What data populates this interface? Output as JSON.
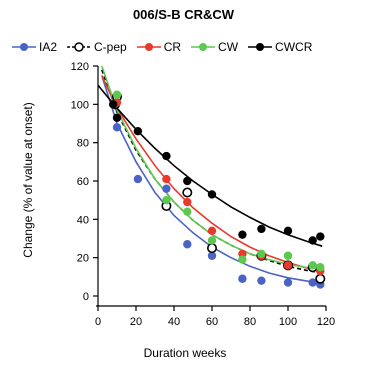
{
  "chart_data": {
    "type": "scatter",
    "title": "006/S-B CR&CW",
    "xlabel": "Duration weeks",
    "ylabel": "Change  (% of value at onset)",
    "xlim": [
      0,
      120
    ],
    "ylim": [
      0,
      120
    ],
    "x_ticks": [
      0,
      20,
      40,
      60,
      80,
      100,
      120
    ],
    "y_ticks": [
      0,
      20,
      40,
      60,
      80,
      100,
      120
    ],
    "legend_position": "top",
    "series": [
      {
        "name": "IA2",
        "color": "#4a63c4",
        "marker": "filled-circle",
        "line_style": "solid",
        "points": [
          [
            8,
            100
          ],
          [
            10,
            88
          ],
          [
            21,
            61
          ],
          [
            36,
            56
          ],
          [
            47,
            27
          ],
          [
            60,
            21
          ],
          [
            76,
            9
          ],
          [
            86,
            8
          ],
          [
            100,
            7
          ],
          [
            113,
            7
          ],
          [
            117,
            6
          ]
        ],
        "fit": [
          [
            2,
            115
          ],
          [
            10,
            90
          ],
          [
            20,
            70
          ],
          [
            30,
            54
          ],
          [
            40,
            42
          ],
          [
            50,
            33
          ],
          [
            60,
            25.5
          ],
          [
            70,
            20
          ],
          [
            80,
            15.5
          ],
          [
            90,
            12
          ],
          [
            100,
            9.5
          ],
          [
            110,
            7.8
          ],
          [
            118,
            6.5
          ]
        ]
      },
      {
        "name": "C-pep",
        "color": "#000000",
        "marker": "open-circle",
        "line_style": "dashed",
        "points": [
          [
            9,
            100
          ],
          [
            10,
            104
          ],
          [
            36,
            47
          ],
          [
            47,
            54
          ],
          [
            60,
            25
          ],
          [
            86,
            21
          ],
          [
            100,
            16
          ],
          [
            113,
            15
          ],
          [
            117,
            9
          ]
        ],
        "fit": [
          [
            2,
            118
          ],
          [
            10,
            96
          ],
          [
            20,
            76
          ],
          [
            30,
            61
          ],
          [
            40,
            49
          ],
          [
            50,
            39.5
          ],
          [
            60,
            32
          ],
          [
            70,
            26.5
          ],
          [
            80,
            22
          ],
          [
            90,
            18.5
          ],
          [
            100,
            15.5
          ],
          [
            110,
            13.3
          ],
          [
            118,
            12
          ]
        ]
      },
      {
        "name": "CR",
        "color": "#e8392b",
        "marker": "filled-circle",
        "line_style": "solid",
        "points": [
          [
            8,
            100
          ],
          [
            10,
            101
          ],
          [
            36,
            61
          ],
          [
            47,
            49
          ],
          [
            60,
            34
          ],
          [
            76,
            22
          ],
          [
            86,
            21
          ],
          [
            100,
            16
          ],
          [
            117,
            13
          ]
        ],
        "fit": [
          [
            2,
            115
          ],
          [
            10,
            98
          ],
          [
            20,
            82
          ],
          [
            30,
            68
          ],
          [
            40,
            56
          ],
          [
            50,
            46
          ],
          [
            60,
            38
          ],
          [
            70,
            31
          ],
          [
            80,
            25.5
          ],
          [
            90,
            21
          ],
          [
            100,
            17.5
          ],
          [
            110,
            14.5
          ],
          [
            118,
            12.5
          ]
        ]
      },
      {
        "name": "CW",
        "color": "#5cc84e",
        "marker": "filled-circle",
        "line_style": "solid",
        "points": [
          [
            8,
            100
          ],
          [
            10,
            105
          ],
          [
            36,
            50
          ],
          [
            47,
            44
          ],
          [
            60,
            29
          ],
          [
            76,
            19
          ],
          [
            86,
            22
          ],
          [
            100,
            21
          ],
          [
            113,
            16
          ],
          [
            117,
            15
          ]
        ],
        "fit": [
          [
            2,
            120
          ],
          [
            10,
            97
          ],
          [
            20,
            77
          ],
          [
            30,
            61
          ],
          [
            40,
            49
          ],
          [
            50,
            39.5
          ],
          [
            60,
            32
          ],
          [
            70,
            26.5
          ],
          [
            80,
            22
          ],
          [
            90,
            19
          ],
          [
            100,
            16.5
          ],
          [
            110,
            14.8
          ],
          [
            118,
            14
          ]
        ]
      },
      {
        "name": "CWCR",
        "color": "#000000",
        "marker": "filled-circle",
        "line_style": "solid",
        "points": [
          [
            8,
            100
          ],
          [
            10,
            93
          ],
          [
            21,
            86
          ],
          [
            36,
            73
          ],
          [
            47,
            60
          ],
          [
            60,
            53
          ],
          [
            76,
            32
          ],
          [
            86,
            35
          ],
          [
            100,
            34
          ],
          [
            113,
            29
          ],
          [
            117,
            31
          ]
        ],
        "fit": [
          [
            0,
            110
          ],
          [
            10,
            98
          ],
          [
            20,
            87
          ],
          [
            30,
            77
          ],
          [
            40,
            68
          ],
          [
            50,
            60
          ],
          [
            60,
            53
          ],
          [
            70,
            46.5
          ],
          [
            80,
            41
          ],
          [
            90,
            36
          ],
          [
            100,
            32
          ],
          [
            110,
            28.5
          ],
          [
            118,
            26
          ]
        ]
      }
    ]
  }
}
